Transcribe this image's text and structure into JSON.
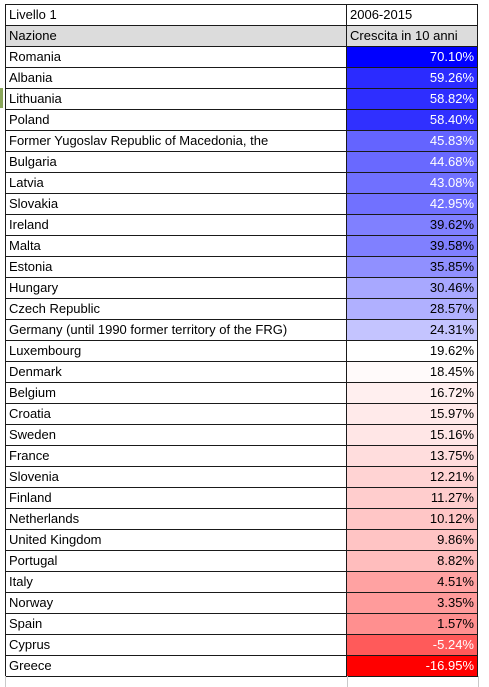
{
  "header": {
    "level_label": "Livello 1",
    "period": "2006-2015",
    "country_col": "Nazione",
    "growth_col": "Crescita in 10 anni"
  },
  "rows": [
    {
      "country": "Romania",
      "growth": "70.10%",
      "color": "#0000ff"
    },
    {
      "country": "Albania",
      "growth": "59.26%",
      "color": "#2b2bff"
    },
    {
      "country": "Lithuania",
      "growth": "58.82%",
      "color": "#2e2eff"
    },
    {
      "country": "Poland",
      "growth": "58.40%",
      "color": "#3030ff"
    },
    {
      "country": "Former Yugoslav Republic of Macedonia, the",
      "growth": "45.83%",
      "color": "#6464ff"
    },
    {
      "country": "Bulgaria",
      "growth": "44.68%",
      "color": "#6969ff"
    },
    {
      "country": "Latvia",
      "growth": "43.08%",
      "color": "#7070ff"
    },
    {
      "country": "Slovakia",
      "growth": "42.95%",
      "color": "#7171ff"
    },
    {
      "country": "Ireland",
      "growth": "39.62%",
      "color": "#8080ff"
    },
    {
      "country": "Malta",
      "growth": "39.58%",
      "color": "#8080ff"
    },
    {
      "country": "Estonia",
      "growth": "35.85%",
      "color": "#9090ff"
    },
    {
      "country": "Hungary",
      "growth": "30.46%",
      "color": "#a8a8ff"
    },
    {
      "country": "Czech Republic",
      "growth": "28.57%",
      "color": "#b0b0ff"
    },
    {
      "country": "Germany (until 1990 former territory of the FRG)",
      "growth": "24.31%",
      "color": "#c4c4ff"
    },
    {
      "country": "Luxembourg",
      "growth": "19.62%",
      "color": "#ffffff"
    },
    {
      "country": "Denmark",
      "growth": "18.45%",
      "color": "#fffafa"
    },
    {
      "country": "Belgium",
      "growth": "16.72%",
      "color": "#ffefef"
    },
    {
      "country": "Croatia",
      "growth": "15.97%",
      "color": "#ffeaea"
    },
    {
      "country": "Sweden",
      "growth": "15.16%",
      "color": "#ffe6e6"
    },
    {
      "country": "France",
      "growth": "13.75%",
      "color": "#ffdddd"
    },
    {
      "country": "Slovenia",
      "growth": "12.21%",
      "color": "#ffd3d3"
    },
    {
      "country": "Finland",
      "growth": "11.27%",
      "color": "#ffcdcd"
    },
    {
      "country": "Netherlands",
      "growth": "10.12%",
      "color": "#ffc6c6"
    },
    {
      "country": "United Kingdom",
      "growth": "9.86%",
      "color": "#ffc4c4"
    },
    {
      "country": "Portugal",
      "growth": "8.82%",
      "color": "#ffbdbd"
    },
    {
      "country": "Italy",
      "growth": "4.51%",
      "color": "#ffa2a2"
    },
    {
      "country": "Norway",
      "growth": "3.35%",
      "color": "#ff9b9b"
    },
    {
      "country": "Spain",
      "growth": "1.57%",
      "color": "#ff8f8f"
    },
    {
      "country": "Cyprus",
      "growth": "-5.24%",
      "color": "#ff5a5a"
    },
    {
      "country": "Greece",
      "growth": "-16.95%",
      "color": "#ff0000"
    }
  ]
}
